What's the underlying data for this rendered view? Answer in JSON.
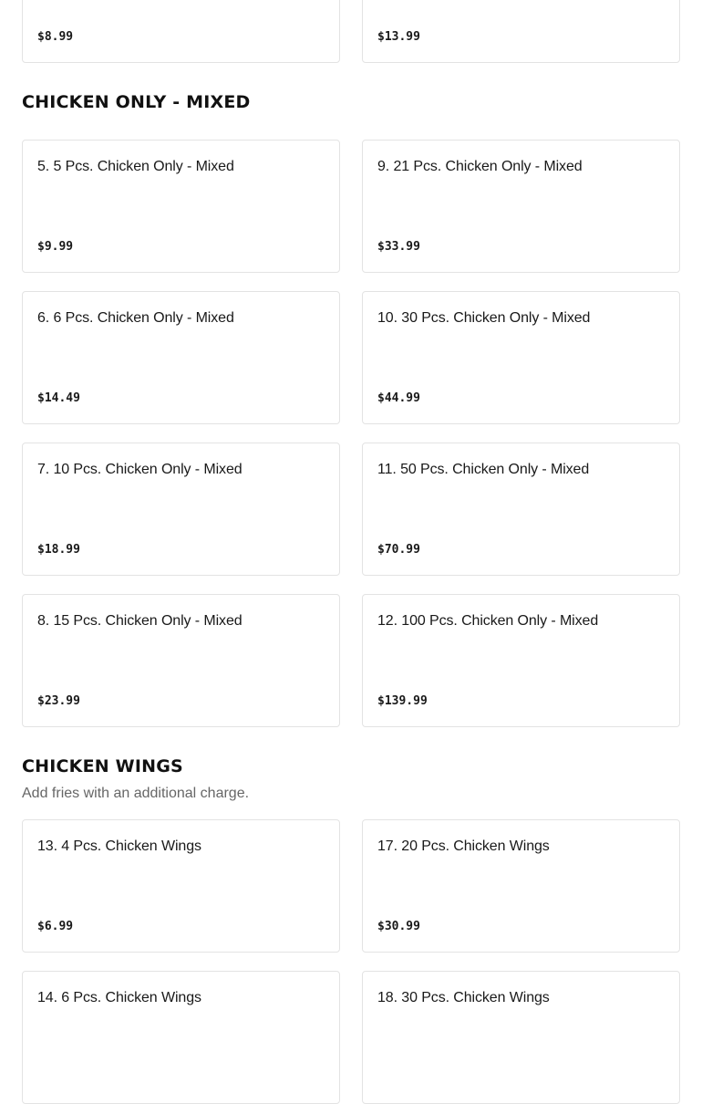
{
  "top_items": [
    {
      "title": "",
      "price": "$8.99"
    },
    {
      "title": "",
      "price": "$13.99"
    }
  ],
  "sections": [
    {
      "title": "CHICKEN ONLY - MIXED",
      "items": [
        {
          "title": "5. 5 Pcs. Chicken Only - Mixed",
          "price": "$9.99"
        },
        {
          "title": "9. 21 Pcs. Chicken Only - Mixed",
          "price": "$33.99"
        },
        {
          "title": "6. 6 Pcs. Chicken Only - Mixed",
          "price": "$14.49"
        },
        {
          "title": "10. 30 Pcs. Chicken Only - Mixed",
          "price": "$44.99"
        },
        {
          "title": "7. 10 Pcs. Chicken Only - Mixed",
          "price": "$18.99"
        },
        {
          "title": "11. 50 Pcs. Chicken Only - Mixed",
          "price": "$70.99"
        },
        {
          "title": "8. 15 Pcs. Chicken Only - Mixed",
          "price": "$23.99"
        },
        {
          "title": "12. 100 Pcs. Chicken Only - Mixed",
          "price": "$139.99"
        }
      ]
    },
    {
      "title": "CHICKEN WINGS",
      "subtitle": "Add fries with an additional charge.",
      "items": [
        {
          "title": "13. 4 Pcs. Chicken Wings",
          "price": "$6.99"
        },
        {
          "title": "17. 20 Pcs. Chicken Wings",
          "price": "$30.99"
        },
        {
          "title": "14. 6 Pcs. Chicken Wings",
          "price": ""
        },
        {
          "title": "18. 30 Pcs. Chicken Wings",
          "price": ""
        }
      ]
    }
  ]
}
